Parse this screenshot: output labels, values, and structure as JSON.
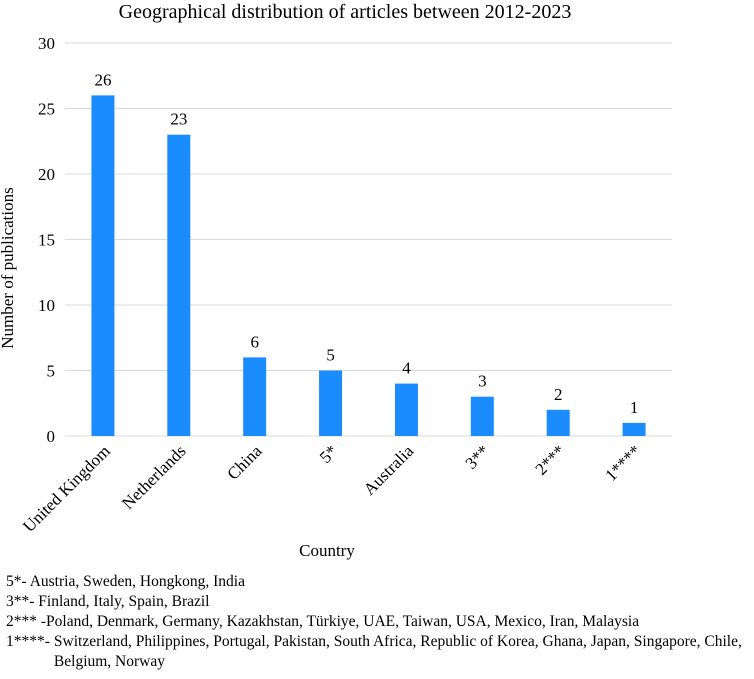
{
  "chart_data": {
    "type": "bar",
    "title": "Geographical distribution of articles between 2012-2023",
    "xlabel": "Country",
    "ylabel": "Number of publications",
    "categories": [
      "United Kingdom",
      "Netherlands",
      "China",
      "5*",
      "Australia",
      "3**",
      "2***",
      "1****"
    ],
    "values": [
      26,
      23,
      6,
      5,
      4,
      3,
      2,
      1
    ],
    "ylim": [
      0,
      30
    ],
    "yticks": [
      0,
      5,
      10,
      15,
      20,
      25,
      30
    ],
    "grid": true,
    "bar_color": "#1a8cff",
    "grid_color": "#d9d9d9"
  },
  "notes": [
    {
      "key": "5*-",
      "text": "Austria, Sweden, Hongkong, India"
    },
    {
      "key": "3**-",
      "text": "Finland, Italy, Spain, Brazil"
    },
    {
      "key": "2***",
      "text": "-Poland, Denmark, Germany, Kazakhstan, Türkiye, UAE, Taiwan, USA, Mexico, Iran, Malaysia"
    },
    {
      "key": "1****-",
      "text": "Switzerland, Philippines, Portugal, Pakistan, South Africa, Republic of Korea, Ghana, Japan, Singapore, Chile, Belgium, Norway"
    }
  ]
}
